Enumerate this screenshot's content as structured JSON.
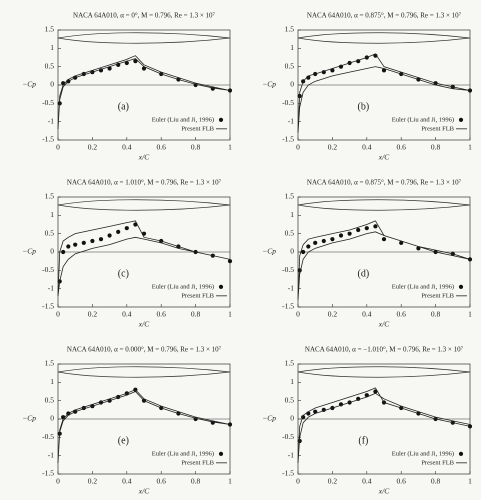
{
  "chart_data": [
    {
      "type": "line",
      "title": "NACA 64A010, α = 0°, M = 0.796, Re = 1.3 × 10⁷",
      "panel": "(a)",
      "xlabel": "x/C",
      "ylabel": "−Cp",
      "xlim": [
        0,
        1
      ],
      "ylim": [
        -1.5,
        1.5
      ],
      "xticks": [
        0,
        0.2,
        0.4,
        0.6,
        0.8,
        1
      ],
      "yticks": [
        -1.5,
        -1,
        -0.5,
        0,
        0.5,
        1,
        1.5
      ],
      "series": [
        {
          "name": "Euler (Liu and Ji, 1996)",
          "type": "scatter",
          "color": "#111111",
          "x": [
            0.01,
            0.03,
            0.06,
            0.1,
            0.15,
            0.2,
            0.25,
            0.3,
            0.35,
            0.4,
            0.45,
            0.5,
            0.6,
            0.7,
            0.8,
            0.9,
            1
          ],
          "values": [
            -0.5,
            0.05,
            0.1,
            0.2,
            0.3,
            0.35,
            0.4,
            0.45,
            0.55,
            0.6,
            0.65,
            0.45,
            0.3,
            0.15,
            0,
            -0.1,
            -0.15
          ]
        },
        {
          "name": "Present FLB",
          "type": "line",
          "color": "#222222",
          "x": [
            0,
            0.01,
            0.03,
            0.06,
            0.1,
            0.2,
            0.3,
            0.4,
            0.45,
            0.5,
            0.6,
            0.7,
            0.8,
            0.9,
            1,
            1,
            0,
            0.01,
            0.03,
            0.06,
            0.1,
            0.2,
            0.3,
            0.4,
            0.45,
            0.5,
            0.6,
            0.7,
            0.8,
            0.9,
            1
          ],
          "values": [
            -1.2,
            -0.3,
            0,
            0.15,
            0.25,
            0.4,
            0.55,
            0.7,
            0.8,
            0.55,
            0.35,
            0.2,
            0.05,
            -0.05,
            -0.15,
            null,
            -1.2,
            -0.4,
            -0.05,
            0.1,
            0.2,
            0.35,
            0.5,
            0.65,
            0.72,
            0.5,
            0.3,
            0.15,
            0.02,
            -0.08,
            -0.15
          ]
        }
      ]
    },
    {
      "type": "line",
      "title": "NACA 64A010, α = 0.875°, M = 0.796, Re = 1.3 × 10⁷",
      "panel": "(b)",
      "xlabel": "x/C",
      "ylabel": "−Cp",
      "xlim": [
        0,
        1
      ],
      "ylim": [
        -1.5,
        1.5
      ],
      "xticks": [
        0,
        0.2,
        0.4,
        0.6,
        0.8,
        1
      ],
      "yticks": [
        -1.5,
        -1,
        -0.5,
        0,
        0.5,
        1,
        1.5
      ],
      "series": [
        {
          "name": "Euler (Liu and Ji, 1996)",
          "type": "scatter",
          "color": "#111111",
          "x": [
            0.01,
            0.03,
            0.06,
            0.1,
            0.15,
            0.2,
            0.25,
            0.3,
            0.35,
            0.4,
            0.45,
            0.5,
            0.6,
            0.7,
            0.8,
            0.9,
            1
          ],
          "values": [
            -0.3,
            0.1,
            0.2,
            0.3,
            0.35,
            0.4,
            0.5,
            0.6,
            0.65,
            0.75,
            0.8,
            0.4,
            0.3,
            0.15,
            0.05,
            -0.05,
            -0.15
          ]
        },
        {
          "name": "Present FLB",
          "type": "line",
          "color": "#222222",
          "x": [
            0,
            0.01,
            0.03,
            0.06,
            0.1,
            0.2,
            0.3,
            0.4,
            0.45,
            0.5,
            0.6,
            0.7,
            0.8,
            0.9,
            1,
            1,
            0,
            0.01,
            0.03,
            0.06,
            0.1,
            0.2,
            0.3,
            0.4,
            0.45,
            0.5,
            0.6,
            0.7,
            0.8,
            0.9,
            1
          ],
          "values": [
            -1.3,
            -0.2,
            0.1,
            0.25,
            0.3,
            0.45,
            0.6,
            0.75,
            0.85,
            0.5,
            0.35,
            0.2,
            0.05,
            -0.05,
            -0.15,
            null,
            -1.3,
            -0.6,
            -0.2,
            0,
            0.1,
            0.25,
            0.35,
            0.45,
            0.5,
            0.45,
            0.3,
            0.15,
            0,
            -0.1,
            -0.15
          ]
        }
      ]
    },
    {
      "type": "line",
      "title": "NACA 64A010, α = 1.010°, M = 0.796, Re = 1.3 × 10⁷",
      "panel": "(c)",
      "xlabel": "x/C",
      "ylabel": "−Cp",
      "xlim": [
        0,
        1
      ],
      "ylim": [
        -1.5,
        1.5
      ],
      "xticks": [
        0,
        0.2,
        0.4,
        0.6,
        0.8,
        1
      ],
      "yticks": [
        -1.5,
        -1,
        -0.5,
        0,
        0.5,
        1,
        1.5
      ],
      "series": [
        {
          "name": "Euler (Liu and Ji, 1996)",
          "type": "scatter",
          "color": "#111111",
          "x": [
            0.01,
            0.03,
            0.06,
            0.1,
            0.15,
            0.2,
            0.25,
            0.3,
            0.35,
            0.4,
            0.45,
            0.5,
            0.6,
            0.7,
            0.8,
            0.9,
            1
          ],
          "values": [
            -0.8,
            0,
            0.15,
            0.2,
            0.25,
            0.3,
            0.35,
            0.45,
            0.55,
            0.65,
            0.75,
            0.5,
            0.3,
            0.15,
            0,
            -0.1,
            -0.25
          ]
        },
        {
          "name": "Present FLB",
          "type": "line",
          "color": "#222222",
          "x": [
            0,
            0.01,
            0.03,
            0.06,
            0.1,
            0.2,
            0.3,
            0.4,
            0.45,
            0.5,
            0.6,
            0.7,
            0.8,
            0.9,
            1,
            1,
            0,
            0.01,
            0.03,
            0.06,
            0.1,
            0.2,
            0.3,
            0.4,
            0.45,
            0.5,
            0.6,
            0.7,
            0.8,
            0.9,
            1
          ],
          "values": [
            -1.2,
            0,
            0.3,
            0.4,
            0.5,
            0.6,
            0.7,
            0.8,
            0.85,
            0.4,
            0.3,
            0.15,
            0,
            -0.1,
            -0.2,
            null,
            -1.2,
            -0.8,
            -0.4,
            -0.2,
            -0.05,
            0.1,
            0.2,
            0.35,
            0.4,
            0.35,
            0.25,
            0.1,
            0,
            -0.1,
            -0.2
          ]
        }
      ]
    },
    {
      "type": "line",
      "title": "NACA 64A010, α = 0.875°, M = 0.796, Re = 1.3 × 10⁷",
      "panel": "(d)",
      "xlabel": "x/C",
      "ylabel": "−Cp",
      "xlim": [
        0,
        1
      ],
      "ylim": [
        -1.5,
        1.5
      ],
      "xticks": [
        0,
        0.2,
        0.4,
        0.6,
        0.8,
        1
      ],
      "yticks": [
        -1.5,
        -1,
        -0.5,
        0,
        0.5,
        1,
        1.5
      ],
      "series": [
        {
          "name": "Euler (Liu and Ji, 1996)",
          "type": "scatter",
          "color": "#111111",
          "x": [
            0.01,
            0.03,
            0.06,
            0.1,
            0.15,
            0.2,
            0.25,
            0.3,
            0.35,
            0.4,
            0.45,
            0.5,
            0.6,
            0.7,
            0.8,
            0.9,
            1
          ],
          "values": [
            -0.5,
            0,
            0.15,
            0.25,
            0.3,
            0.35,
            0.45,
            0.5,
            0.6,
            0.65,
            0.7,
            0.35,
            0.25,
            0.1,
            0,
            -0.05,
            -0.2
          ]
        },
        {
          "name": "Present FLB",
          "type": "line",
          "color": "#222222",
          "x": [
            0,
            0.01,
            0.03,
            0.06,
            0.1,
            0.2,
            0.3,
            0.4,
            0.45,
            0.5,
            0.6,
            0.7,
            0.8,
            0.9,
            1,
            1,
            0,
            0.01,
            0.03,
            0.06,
            0.1,
            0.2,
            0.3,
            0.4,
            0.45,
            0.5,
            0.6,
            0.7,
            0.8,
            0.9,
            1
          ],
          "values": [
            -1.3,
            -0.1,
            0.2,
            0.35,
            0.4,
            0.5,
            0.6,
            0.75,
            0.85,
            0.45,
            0.3,
            0.15,
            0.05,
            -0.05,
            -0.2,
            null,
            -1.3,
            -0.6,
            -0.2,
            0,
            0.1,
            0.25,
            0.35,
            0.5,
            0.55,
            0.45,
            0.3,
            0.15,
            0,
            -0.1,
            -0.2
          ]
        }
      ]
    },
    {
      "type": "line",
      "title": "NACA 64A010, α = 0.000°, M = 0.796, Re = 1.3 × 10⁷",
      "panel": "(e)",
      "xlabel": "x/C",
      "ylabel": "−Cp",
      "xlim": [
        0,
        1
      ],
      "ylim": [
        -1.5,
        1.5
      ],
      "xticks": [
        0,
        0.2,
        0.4,
        0.6,
        0.8,
        1
      ],
      "yticks": [
        -1.5,
        -1,
        -0.5,
        0,
        0.5,
        1,
        1.5
      ],
      "series": [
        {
          "name": "Euler (Liu and Ji, 1996)",
          "type": "scatter",
          "color": "#111111",
          "x": [
            0.01,
            0.03,
            0.06,
            0.1,
            0.15,
            0.2,
            0.25,
            0.3,
            0.35,
            0.4,
            0.45,
            0.5,
            0.6,
            0.7,
            0.8,
            0.9,
            1
          ],
          "values": [
            -0.4,
            0.05,
            0.15,
            0.2,
            0.3,
            0.35,
            0.45,
            0.5,
            0.6,
            0.7,
            0.8,
            0.5,
            0.3,
            0.15,
            0,
            -0.1,
            -0.15
          ]
        },
        {
          "name": "Present FLB",
          "type": "line",
          "color": "#222222",
          "x": [
            0,
            0.01,
            0.03,
            0.06,
            0.1,
            0.2,
            0.3,
            0.4,
            0.45,
            0.5,
            0.6,
            0.7,
            0.8,
            0.9,
            1,
            1,
            0,
            0.01,
            0.03,
            0.06,
            0.1,
            0.2,
            0.3,
            0.4,
            0.45,
            0.5,
            0.6,
            0.7,
            0.8,
            0.9,
            1
          ],
          "values": [
            -1.2,
            -0.3,
            0,
            0.15,
            0.25,
            0.4,
            0.55,
            0.7,
            0.8,
            0.55,
            0.35,
            0.2,
            0.05,
            -0.05,
            -0.15,
            null,
            -1.2,
            -0.35,
            -0.05,
            0.1,
            0.2,
            0.35,
            0.5,
            0.65,
            0.75,
            0.5,
            0.3,
            0.15,
            0.02,
            -0.08,
            -0.15
          ]
        }
      ]
    },
    {
      "type": "line",
      "title": "NACA 64A010, α = −1.010°, M = 0.796, Re = 1.3 × 10⁷",
      "panel": "(f)",
      "xlabel": "x/C",
      "ylabel": "−Cp",
      "xlim": [
        0,
        1
      ],
      "ylim": [
        -1.5,
        1.5
      ],
      "xticks": [
        0,
        0.2,
        0.4,
        0.6,
        0.8,
        1
      ],
      "yticks": [
        -1.5,
        -1,
        -0.5,
        0,
        0.5,
        1,
        1.5
      ],
      "series": [
        {
          "name": "Euler (Liu and Ji, 1996)",
          "type": "scatter",
          "color": "#111111",
          "x": [
            0.01,
            0.03,
            0.06,
            0.1,
            0.15,
            0.2,
            0.25,
            0.3,
            0.35,
            0.4,
            0.45,
            0.5,
            0.6,
            0.7,
            0.8,
            0.9,
            1
          ],
          "values": [
            -0.6,
            0.05,
            0.15,
            0.2,
            0.25,
            0.3,
            0.4,
            0.45,
            0.55,
            0.65,
            0.75,
            0.45,
            0.3,
            0.15,
            0,
            -0.1,
            -0.2
          ]
        },
        {
          "name": "Present FLB",
          "type": "line",
          "color": "#222222",
          "x": [
            0,
            0.01,
            0.03,
            0.06,
            0.1,
            0.2,
            0.3,
            0.4,
            0.45,
            0.5,
            0.6,
            0.7,
            0.8,
            0.9,
            1,
            1,
            0,
            0.01,
            0.03,
            0.06,
            0.1,
            0.2,
            0.3,
            0.4,
            0.45,
            0.5,
            0.6,
            0.7,
            0.8,
            0.9,
            1
          ],
          "values": [
            -1.2,
            -0.5,
            -0.1,
            0.05,
            0.15,
            0.3,
            0.45,
            0.6,
            0.7,
            0.55,
            0.35,
            0.2,
            0.05,
            -0.05,
            -0.15,
            null,
            -1.2,
            -0.2,
            0.1,
            0.2,
            0.3,
            0.45,
            0.6,
            0.75,
            0.85,
            0.45,
            0.3,
            0.15,
            0,
            -0.1,
            -0.2
          ]
        }
      ]
    }
  ]
}
